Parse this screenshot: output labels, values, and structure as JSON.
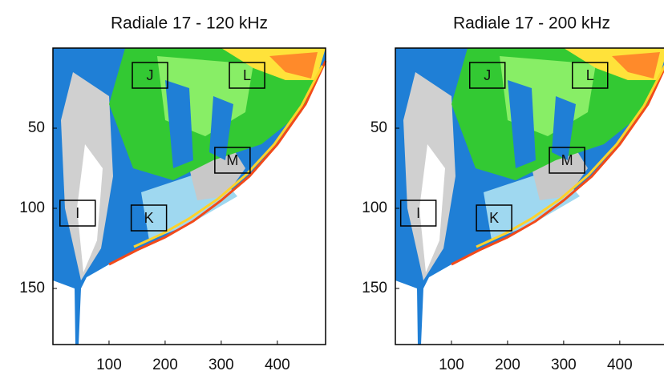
{
  "chart_data": [
    {
      "type": "echogram",
      "title": "Radiale 17 - 120 kHz",
      "xlim": [
        0,
        486
      ],
      "ylim": [
        0,
        185
      ],
      "xticks": [
        100,
        200,
        300,
        400
      ],
      "yticks": [
        50,
        100,
        150
      ],
      "annotations": [
        {
          "text": "J",
          "x": 173,
          "y": 17
        },
        {
          "text": "L",
          "x": 346,
          "y": 17
        },
        {
          "text": "M",
          "x": 320,
          "y": 70
        },
        {
          "text": "I",
          "x": 44,
          "y": 103
        },
        {
          "text": "K",
          "x": 171,
          "y": 106
        }
      ]
    },
    {
      "type": "echogram",
      "title": "Radiale 17 - 200 kHz",
      "xlim": [
        0,
        486
      ],
      "ylim": [
        0,
        185
      ],
      "xticks": [
        100,
        200,
        300,
        400
      ],
      "yticks": [
        50,
        100,
        150
      ],
      "annotations": [
        {
          "text": "J",
          "x": 164,
          "y": 17
        },
        {
          "text": "L",
          "x": 347,
          "y": 17
        },
        {
          "text": "M",
          "x": 306,
          "y": 70
        },
        {
          "text": "I",
          "x": 41,
          "y": 103
        },
        {
          "text": "K",
          "x": 176,
          "y": 106
        }
      ]
    }
  ]
}
